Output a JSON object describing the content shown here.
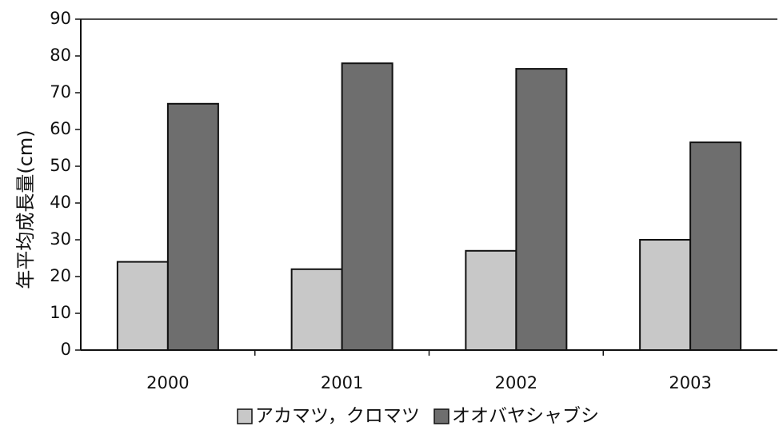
{
  "chart_data": {
    "type": "bar",
    "title": "",
    "xlabel": "",
    "ylabel": "年平均成長量(cm)",
    "ylim": [
      0,
      90
    ],
    "yticks": [
      0,
      10,
      20,
      30,
      40,
      50,
      60,
      70,
      80,
      90
    ],
    "categories": [
      "2000",
      "2001",
      "2002",
      "2003"
    ],
    "series": [
      {
        "name": "アカマツ，クロマツ",
        "values": [
          24,
          22,
          27,
          30
        ],
        "color": "#c8c8c8"
      },
      {
        "name": "オオバヤシャブシ",
        "values": [
          67,
          78,
          76.5,
          56.5
        ],
        "color": "#6e6e6e"
      }
    ],
    "legend": {
      "position": "bottom",
      "items": [
        "アカマツ，クロマツ",
        "オオバヤシャブシ"
      ]
    },
    "grid": false
  }
}
